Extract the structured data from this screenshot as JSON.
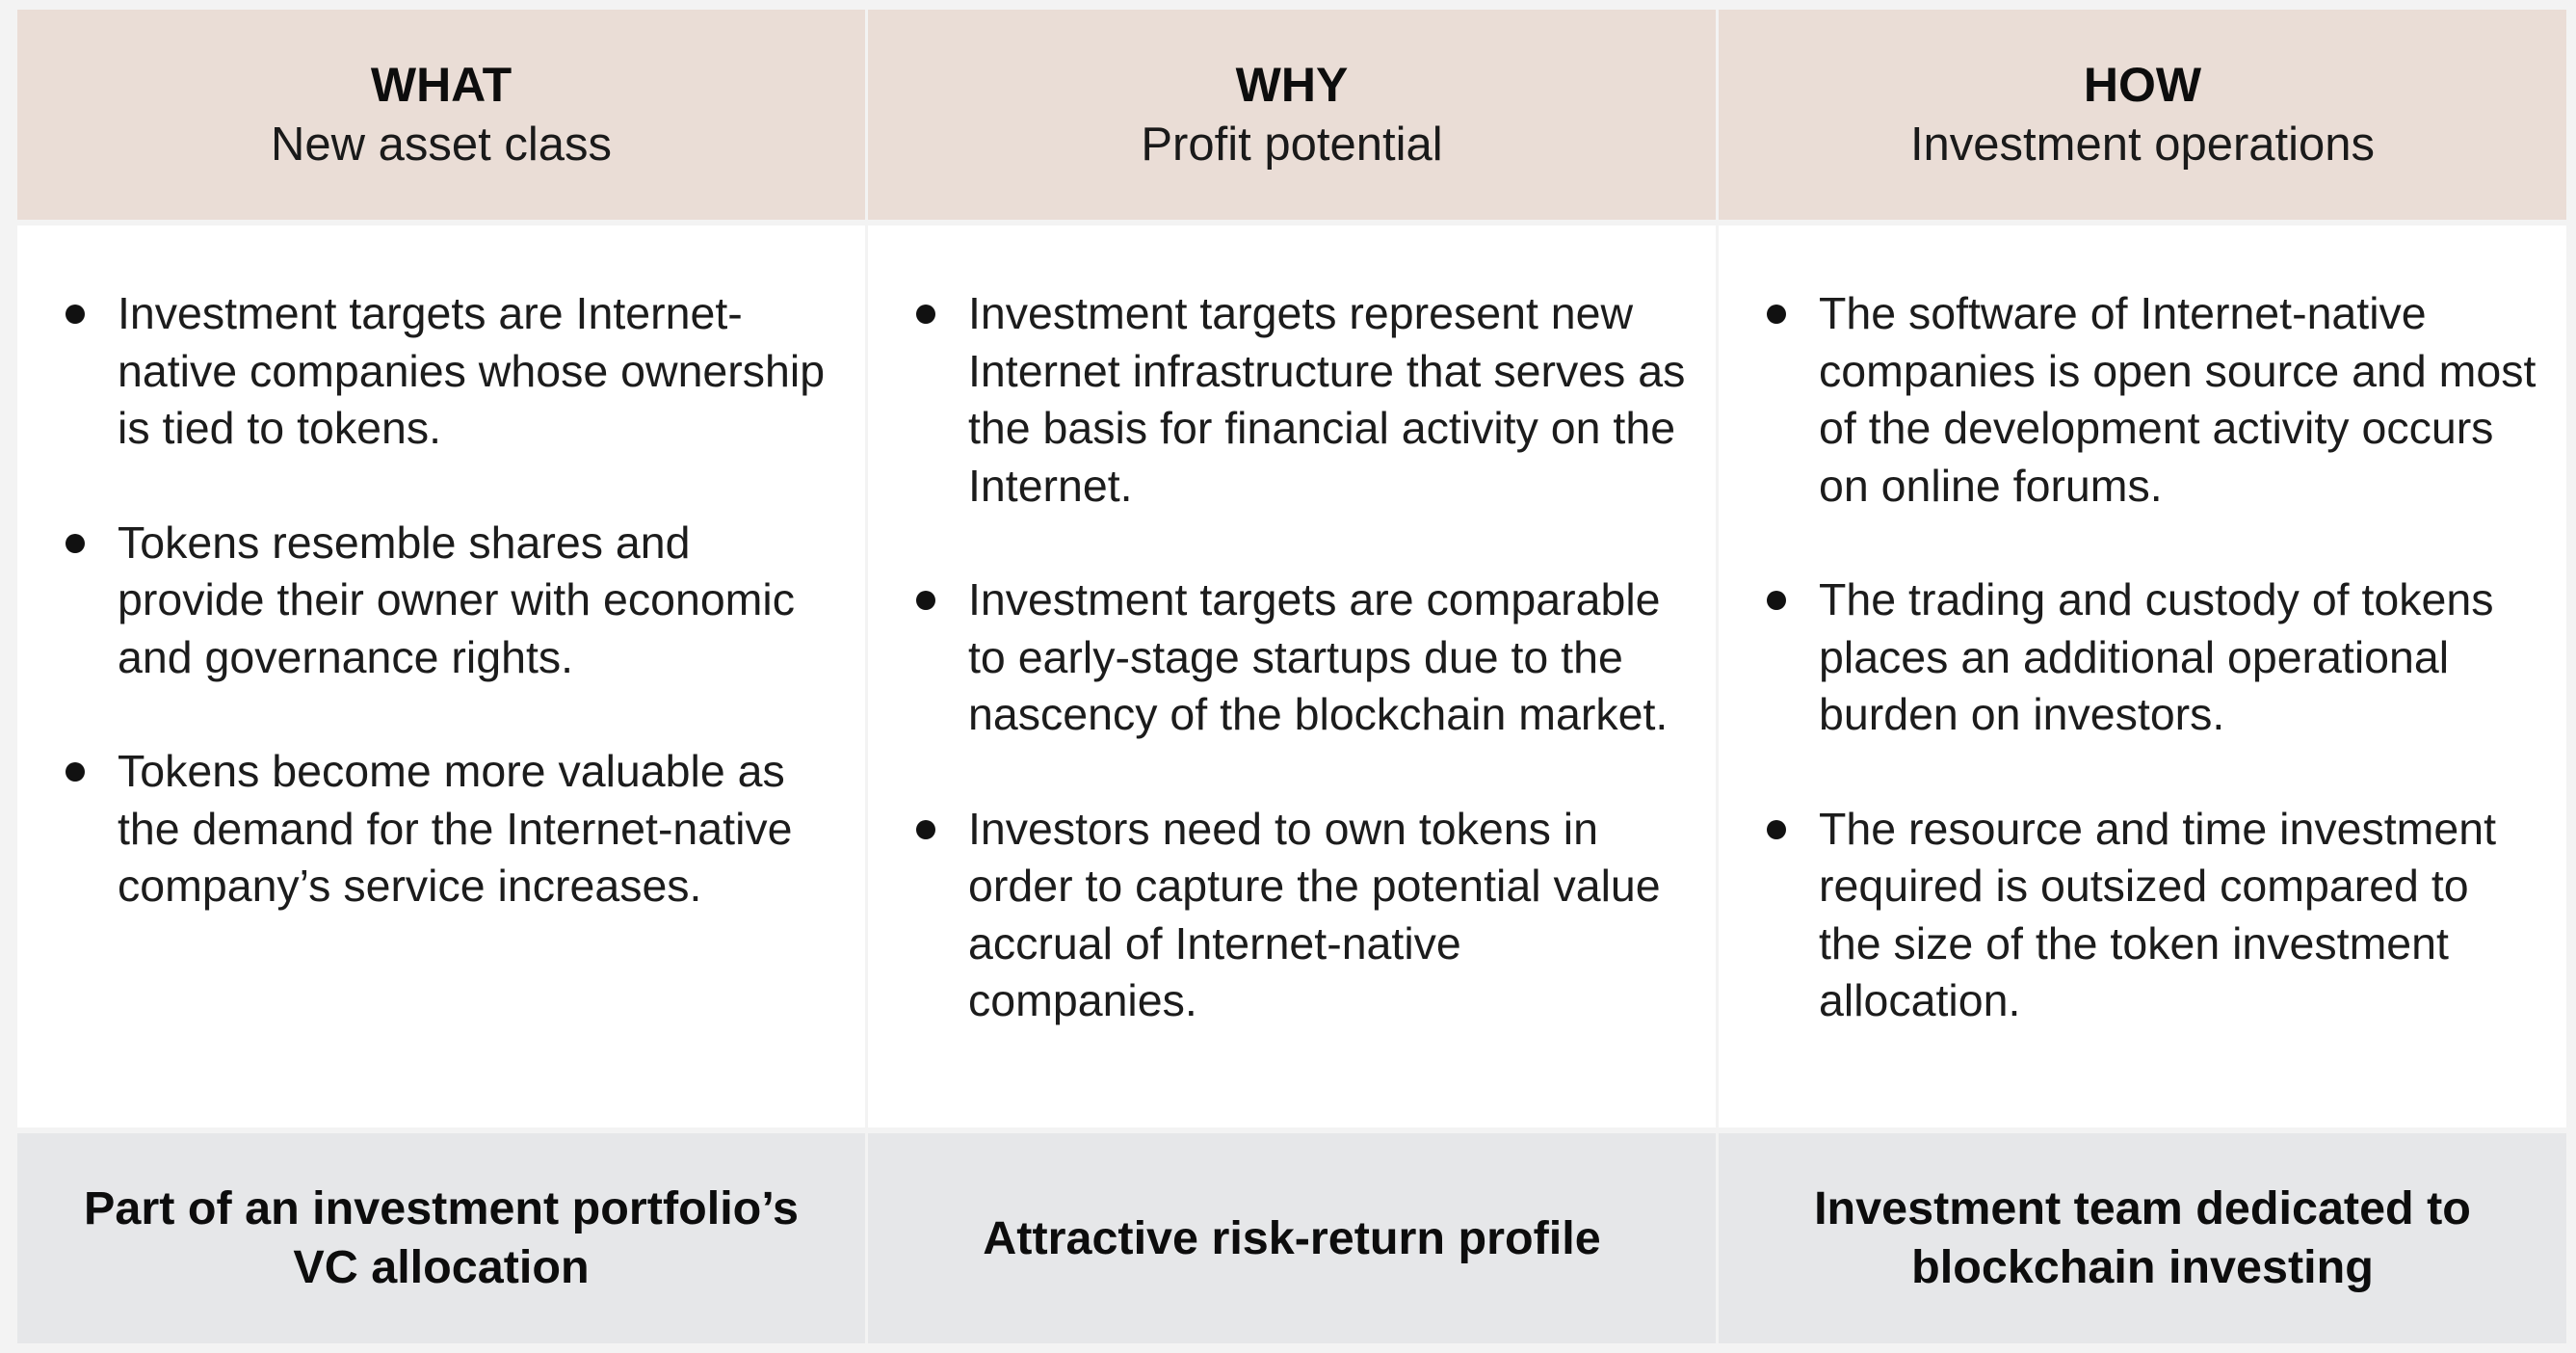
{
  "columns": [
    {
      "title": "WHAT",
      "subtitle": "New asset class",
      "bullets": [
        "Investment targets are Internet-native companies whose ownership is tied to tokens.",
        "Tokens resemble shares and provide their owner with economic and governance rights.",
        "Tokens become more valuable as the demand for the Internet-native company’s service increases."
      ],
      "footer": "Part of an investment portfolio’s VC allocation"
    },
    {
      "title": "WHY",
      "subtitle": "Profit potential",
      "bullets": [
        "Investment targets represent new Internet infrastructure that serves as the basis for financial activity on the Internet.",
        "Investment targets are comparable to early-stage startups due to the nascency of the blockchain market.",
        "Investors need to own tokens in order to capture the potential value accrual of Internet-native companies."
      ],
      "footer": "Attractive risk-return profile"
    },
    {
      "title": "HOW",
      "subtitle": "Investment operations",
      "bullets": [
        "The software of Internet-native companies is open source and most of the development activity occurs on online forums.",
        "The trading and custody of tokens places an additional operational burden on investors.",
        "The resource and time investment required is outsized compared to the size of the token investment allocation."
      ],
      "footer": "Investment team dedicated to blockchain investing"
    }
  ],
  "colors": {
    "header_bg": "#eaddd6",
    "footer_bg": "#e6e7e9",
    "body_bg": "#ffffff",
    "grid_lines": "#f3f3f3"
  }
}
